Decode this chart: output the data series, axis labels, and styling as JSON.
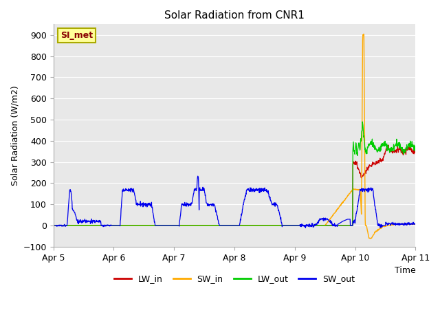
{
  "title": "Solar Radiation from CNR1",
  "ylabel": "Solar Radiation (W/m2)",
  "xlabel": "Time",
  "ylim": [
    -100,
    950
  ],
  "xlim_start": 0,
  "xlim_end": 144,
  "x_tick_labels": [
    "Apr 5",
    "Apr 6",
    "Apr 7",
    "Apr 8",
    "Apr 9",
    "Apr 10",
    "Apr 11"
  ],
  "x_tick_positions": [
    0,
    24,
    48,
    72,
    96,
    120,
    144
  ],
  "yticks": [
    -100,
    0,
    100,
    200,
    300,
    400,
    500,
    600,
    700,
    800,
    900
  ],
  "colors": {
    "LW_in": "#cc0000",
    "SW_in": "#ffaa00",
    "LW_out": "#00cc00",
    "SW_out": "#0000ee"
  },
  "bg_color": "#e8e8e8",
  "annotation_text": "SI_met",
  "annotation_color": "#880000",
  "annotation_bg": "#ffff99"
}
